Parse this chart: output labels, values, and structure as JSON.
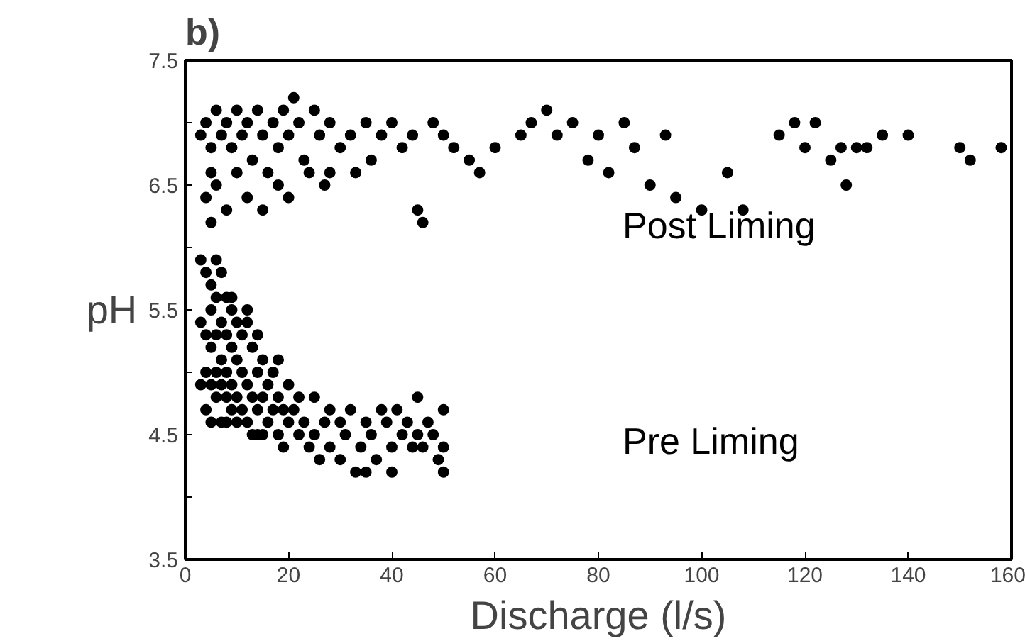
{
  "chart_data": {
    "type": "scatter",
    "title": "b)",
    "xlabel": "Discharge (l/s)",
    "ylabel": "pH",
    "xlim": [
      0,
      160
    ],
    "xticks": [
      0,
      20,
      40,
      60,
      80,
      100,
      120,
      140,
      160
    ],
    "ylim": [
      3.5,
      7.5
    ],
    "yticks": [
      3.5,
      {
        "value": 4,
        "label": null
      },
      4.5,
      {
        "value": 5,
        "label": null
      },
      5.5,
      {
        "value": 6,
        "label": null
      },
      6.5,
      {
        "value": 7,
        "label": null
      },
      7.5
    ],
    "grid": false,
    "legend": false,
    "marker": "circle",
    "series": [
      {
        "name": "Post Liming",
        "color": "#000000",
        "x": [
          3,
          4,
          5,
          5,
          6,
          7,
          4,
          5,
          6,
          8,
          9,
          10,
          11,
          12,
          13,
          14,
          15,
          16,
          17,
          18,
          19,
          20,
          21,
          22,
          23,
          24,
          25,
          26,
          27,
          28,
          30,
          32,
          33,
          35,
          36,
          38,
          40,
          42,
          44,
          45,
          46,
          48,
          50,
          52,
          55,
          57,
          60,
          65,
          67,
          70,
          72,
          75,
          78,
          80,
          82,
          85,
          87,
          90,
          93,
          95,
          100,
          105,
          108,
          115,
          118,
          120,
          122,
          125,
          127,
          128,
          130,
          132,
          135,
          140,
          150,
          152,
          158,
          12,
          15,
          18,
          10,
          8,
          28,
          20
        ],
        "values": [
          6.9,
          7.0,
          6.8,
          6.6,
          7.1,
          6.9,
          6.4,
          6.2,
          6.5,
          7.0,
          6.8,
          7.1,
          6.9,
          7.0,
          6.7,
          7.1,
          6.9,
          6.6,
          7.0,
          6.8,
          7.1,
          6.9,
          7.2,
          7.0,
          6.7,
          6.6,
          7.1,
          6.9,
          6.5,
          7.0,
          6.8,
          6.9,
          6.6,
          7.0,
          6.7,
          6.9,
          7.0,
          6.8,
          6.9,
          6.3,
          6.2,
          7.0,
          6.9,
          6.8,
          6.7,
          6.6,
          6.8,
          6.9,
          7.0,
          7.1,
          6.9,
          7.0,
          6.7,
          6.9,
          6.6,
          7.0,
          6.8,
          6.5,
          6.9,
          6.4,
          6.3,
          6.6,
          6.3,
          6.9,
          7.0,
          6.8,
          7.0,
          6.7,
          6.8,
          6.5,
          6.8,
          6.8,
          6.9,
          6.9,
          6.8,
          6.7,
          6.8,
          6.4,
          6.3,
          6.5,
          6.6,
          6.3,
          6.6,
          6.4
        ]
      },
      {
        "name": "Pre Liming",
        "color": "#000000",
        "x": [
          3,
          3,
          3,
          4,
          4,
          4,
          4,
          5,
          5,
          5,
          5,
          5,
          6,
          6,
          6,
          6,
          6,
          7,
          7,
          7,
          7,
          7,
          8,
          8,
          8,
          8,
          8,
          9,
          9,
          9,
          9,
          10,
          10,
          10,
          10,
          11,
          11,
          11,
          12,
          12,
          12,
          13,
          13,
          13,
          14,
          14,
          14,
          15,
          15,
          15,
          16,
          16,
          17,
          17,
          18,
          18,
          19,
          19,
          20,
          20,
          21,
          22,
          22,
          23,
          24,
          25,
          25,
          26,
          27,
          28,
          28,
          30,
          30,
          31,
          32,
          33,
          34,
          35,
          35,
          36,
          37,
          38,
          39,
          40,
          40,
          41,
          42,
          43,
          44,
          45,
          45,
          46,
          47,
          48,
          49,
          50,
          50,
          50,
          14,
          18,
          9,
          12
        ],
        "values": [
          5.9,
          5.4,
          4.9,
          5.8,
          5.3,
          5.0,
          4.7,
          5.7,
          5.5,
          5.2,
          4.9,
          4.6,
          5.9,
          5.6,
          5.3,
          5.0,
          4.8,
          5.8,
          5.4,
          5.1,
          4.9,
          4.6,
          5.6,
          5.3,
          5.0,
          4.8,
          4.6,
          5.5,
          5.2,
          4.9,
          4.7,
          5.4,
          5.1,
          4.8,
          4.6,
          5.3,
          5.0,
          4.7,
          5.5,
          4.9,
          4.6,
          5.2,
          4.8,
          4.5,
          5.0,
          4.7,
          4.5,
          5.1,
          4.8,
          4.5,
          4.9,
          4.6,
          5.0,
          4.7,
          4.8,
          4.5,
          4.7,
          4.4,
          4.9,
          4.6,
          4.7,
          4.5,
          4.8,
          4.6,
          4.4,
          4.8,
          4.5,
          4.3,
          4.6,
          4.7,
          4.4,
          4.6,
          4.3,
          4.5,
          4.7,
          4.2,
          4.4,
          4.6,
          4.2,
          4.5,
          4.3,
          4.7,
          4.6,
          4.4,
          4.2,
          4.7,
          4.5,
          4.6,
          4.4,
          4.8,
          4.5,
          4.4,
          4.6,
          4.5,
          4.3,
          4.7,
          4.4,
          4.2,
          5.3,
          5.1,
          5.6,
          5.4
        ]
      }
    ]
  }
}
